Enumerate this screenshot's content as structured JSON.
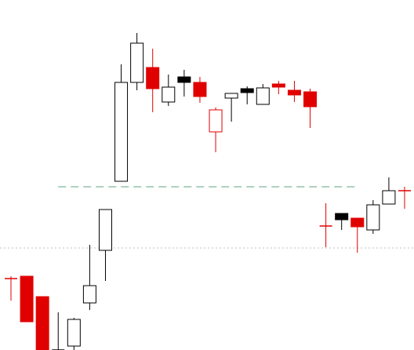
{
  "chart_data": {
    "type": "candlestick",
    "categories": [
      null,
      null,
      null,
      null,
      null,
      null,
      null,
      null,
      null,
      null,
      null,
      null,
      null,
      null,
      null,
      null,
      null,
      null,
      null,
      null,
      null,
      null,
      null,
      null,
      null,
      null
    ],
    "open": [
      91,
      94,
      68,
      0,
      5,
      60,
      127,
      215,
      341,
      360,
      316,
      348,
      341,
      306,
      321,
      333,
      313,
      339,
      331,
      329,
      158,
      174,
      168,
      153,
      186,
      203
    ],
    "high": [
      94,
      94,
      68,
      48,
      41,
      134,
      179,
      364,
      404,
      384,
      351,
      357,
      348,
      309,
      327,
      336,
      339,
      343,
      343,
      333,
      187,
      174,
      168,
      191,
      220,
      208
    ],
    "low": [
      63,
      36,
      0,
      0,
      0,
      51,
      88,
      215,
      331,
      303,
      311,
      323,
      315,
      252,
      291,
      313,
      313,
      326,
      316,
      283,
      131,
      153,
      124,
      148,
      186,
      180
    ],
    "close": [
      91,
      36,
      0,
      0,
      39,
      82,
      179,
      341,
      391,
      333,
      335,
      341,
      323,
      278,
      327,
      328,
      334,
      335,
      325,
      310,
      158,
      166,
      157,
      185,
      203,
      203
    ],
    "fills": [
      "#e00000",
      "#e00000",
      "#e00000",
      "#000000",
      "#ffffff",
      "#ffffff",
      "#ffffff",
      "#ffffff",
      "#ffffff",
      "#e00000",
      "#ffffff",
      "#000000",
      "#e00000",
      "#ffffff",
      "#ffffff",
      "#000000",
      "#ffffff",
      "#e00000",
      "#e00000",
      "#e00000",
      "#e00000",
      "#000000",
      "#e00000",
      "#ffffff",
      "#ffffff",
      "#e00000"
    ],
    "strokes": [
      "#e00000",
      "#e00000",
      "#e00000",
      "#000000",
      "#000000",
      "#000000",
      "#000000",
      "#000000",
      "#000000",
      "#e00000",
      "#000000",
      "#000000",
      "#e00000",
      "#e00000",
      "#000000",
      "#000000",
      "#000000",
      "#e00000",
      "#e00000",
      "#e00000",
      "#e00000",
      "#000000",
      "#e00000",
      "#000000",
      "#000000",
      "#e00000"
    ],
    "ylim": [
      0,
      446
    ],
    "lines": [
      {
        "value": 130,
        "color": "#c0c0c0",
        "style": "dotted"
      },
      {
        "value": 208,
        "color": "#5aa57e",
        "style": "dashed",
        "from": 3,
        "to": 22
      }
    ]
  }
}
